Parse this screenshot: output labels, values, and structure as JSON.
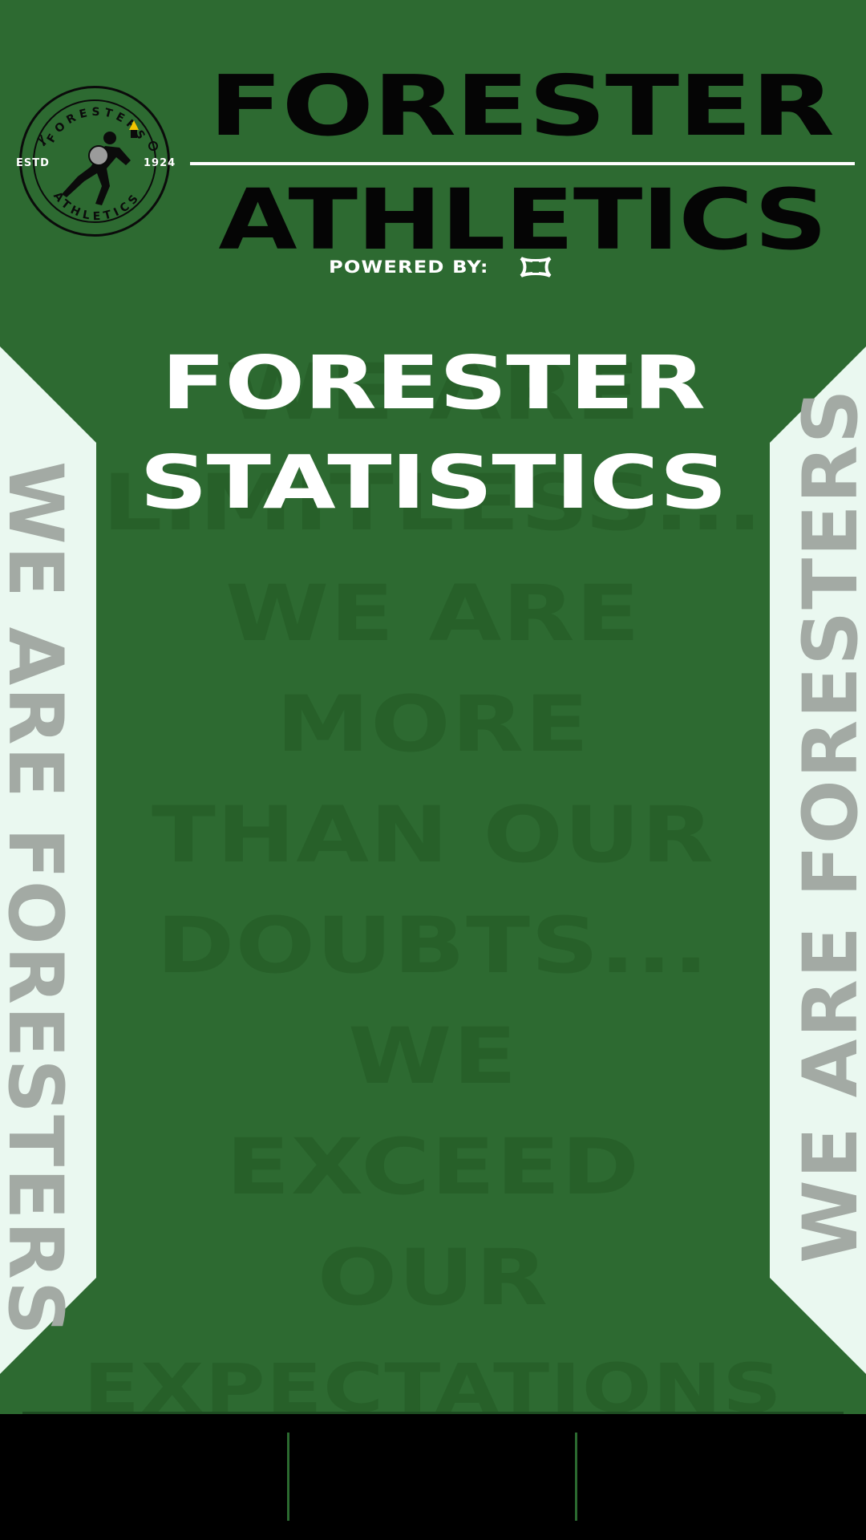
{
  "header": {
    "logo": {
      "ring_top": "FORESTERS",
      "ring_bottom": "ATHLETICS",
      "estd": "ESTD",
      "year": "1924",
      "icon": "runner-logo-icon"
    },
    "title_line1": "FORESTER",
    "title_line2": "ATHLETICS",
    "powered_by": "POWERED BY:",
    "sponsor_icon": "under-armour-logo-icon"
  },
  "main": {
    "heading_line1": "FORESTER",
    "heading_line2": "STATISTICS",
    "watermark_lines": [
      "WE ARE",
      "LIMITLESS...",
      "WE ARE",
      "MORE",
      "THAN OUR",
      "DOUBTS...",
      "WE",
      "EXCEED",
      "OUR",
      "EXPECTATIONS"
    ]
  },
  "side": {
    "left_text": "WE ARE FORESTERS",
    "right_text": "WE ARE FORESTERS"
  },
  "colors": {
    "background": "#2d6a31",
    "panel": "#eaf8f0",
    "side_text": "#a3aaa4",
    "bottom_bar": "#000000"
  }
}
